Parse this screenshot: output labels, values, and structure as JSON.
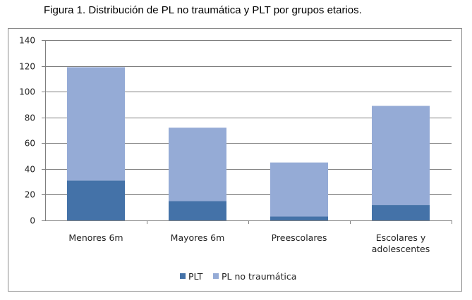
{
  "figure": {
    "caption": "Figura 1. Distribución de PL no traumática y PLT por grupos etarios."
  },
  "colors": {
    "plt": "#4472A8",
    "pl_no_traumatica": "#95ABD6",
    "grid": "#7f7f7f",
    "axis": "#7f7f7f"
  },
  "chart_data": {
    "type": "bar",
    "stacked": true,
    "categories": [
      [
        "Menores 6m"
      ],
      [
        "Mayores 6m"
      ],
      [
        "Preescolares"
      ],
      [
        "Escolares y",
        "adolescentes"
      ]
    ],
    "series": [
      {
        "name": "PLT",
        "values": [
          31,
          15,
          3,
          12
        ]
      },
      {
        "name": "PL no traumática",
        "values": [
          88,
          57,
          42,
          77
        ]
      }
    ],
    "ylim": [
      0,
      140
    ],
    "yticks": [
      0,
      20,
      40,
      60,
      80,
      100,
      120,
      140
    ],
    "grid": true,
    "legend": "bottom",
    "title": "",
    "xlabel": "",
    "ylabel": ""
  }
}
